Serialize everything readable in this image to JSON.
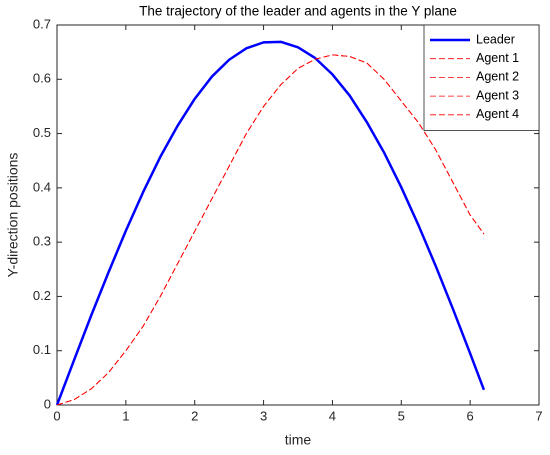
{
  "chart_data": {
    "type": "line",
    "title": "The trajectory of the leader and agents in the Y plane",
    "x_label": "time",
    "y_label": "Y-direction positions",
    "x": [
      0,
      0.25,
      0.5,
      0.75,
      1,
      1.25,
      1.5,
      1.75,
      2,
      2.25,
      2.5,
      2.75,
      3,
      3.25,
      3.5,
      3.75,
      4,
      4.25,
      4.5,
      4.75,
      5,
      5.25,
      5.5,
      5.75,
      6,
      6.2
    ],
    "series": [
      {
        "name": "Leader",
        "color": "#0000ff",
        "linestyle": "solid",
        "linewidth": 2.5,
        "values": [
          0,
          0.0835,
          0.166,
          0.245,
          0.321,
          0.392,
          0.457,
          0.514,
          0.564,
          0.605,
          0.636,
          0.657,
          0.668,
          0.669,
          0.659,
          0.639,
          0.609,
          0.57,
          0.521,
          0.465,
          0.401,
          0.331,
          0.256,
          0.177,
          0.095,
          0.028
        ]
      },
      {
        "name": "Agent 1",
        "color": "#ff0000",
        "linestyle": "dashed",
        "linewidth": 0.8,
        "values": [
          0,
          0.01,
          0.03,
          0.06,
          0.1,
          0.145,
          0.2,
          0.26,
          0.32,
          0.38,
          0.44,
          0.5,
          0.55,
          0.59,
          0.62,
          0.637,
          0.645,
          0.642,
          0.63,
          0.6,
          0.56,
          0.52,
          0.47,
          0.41,
          0.35,
          0.315
        ]
      },
      {
        "name": "Agent 2",
        "color": "#ff0000",
        "linestyle": "dashed",
        "linewidth": 0.8,
        "values": [
          0,
          0.01,
          0.03,
          0.06,
          0.1,
          0.145,
          0.2,
          0.26,
          0.32,
          0.38,
          0.44,
          0.5,
          0.55,
          0.59,
          0.62,
          0.637,
          0.645,
          0.642,
          0.63,
          0.6,
          0.56,
          0.52,
          0.47,
          0.41,
          0.35,
          0.315
        ]
      },
      {
        "name": "Agent 3",
        "color": "#ff0000",
        "linestyle": "dashed",
        "linewidth": 0.8,
        "values": [
          0,
          0.01,
          0.03,
          0.06,
          0.1,
          0.145,
          0.2,
          0.26,
          0.32,
          0.38,
          0.44,
          0.5,
          0.55,
          0.59,
          0.62,
          0.637,
          0.645,
          0.642,
          0.63,
          0.6,
          0.56,
          0.52,
          0.47,
          0.41,
          0.35,
          0.315
        ]
      },
      {
        "name": "Agent 4",
        "color": "#ff0000",
        "linestyle": "dashed",
        "linewidth": 0.8,
        "values": [
          0,
          0.01,
          0.03,
          0.06,
          0.1,
          0.145,
          0.2,
          0.26,
          0.32,
          0.38,
          0.44,
          0.5,
          0.55,
          0.59,
          0.62,
          0.637,
          0.645,
          0.642,
          0.63,
          0.6,
          0.56,
          0.52,
          0.47,
          0.41,
          0.35,
          0.315
        ]
      }
    ],
    "xlim": [
      0,
      7
    ],
    "xticks": [
      0,
      1,
      2,
      3,
      4,
      5,
      6,
      7
    ],
    "ylim": [
      0,
      0.7
    ],
    "yticks": [
      0,
      0.1,
      0.2,
      0.3,
      0.4,
      0.5,
      0.6,
      0.7
    ],
    "legend": "top-right",
    "grid": false
  }
}
